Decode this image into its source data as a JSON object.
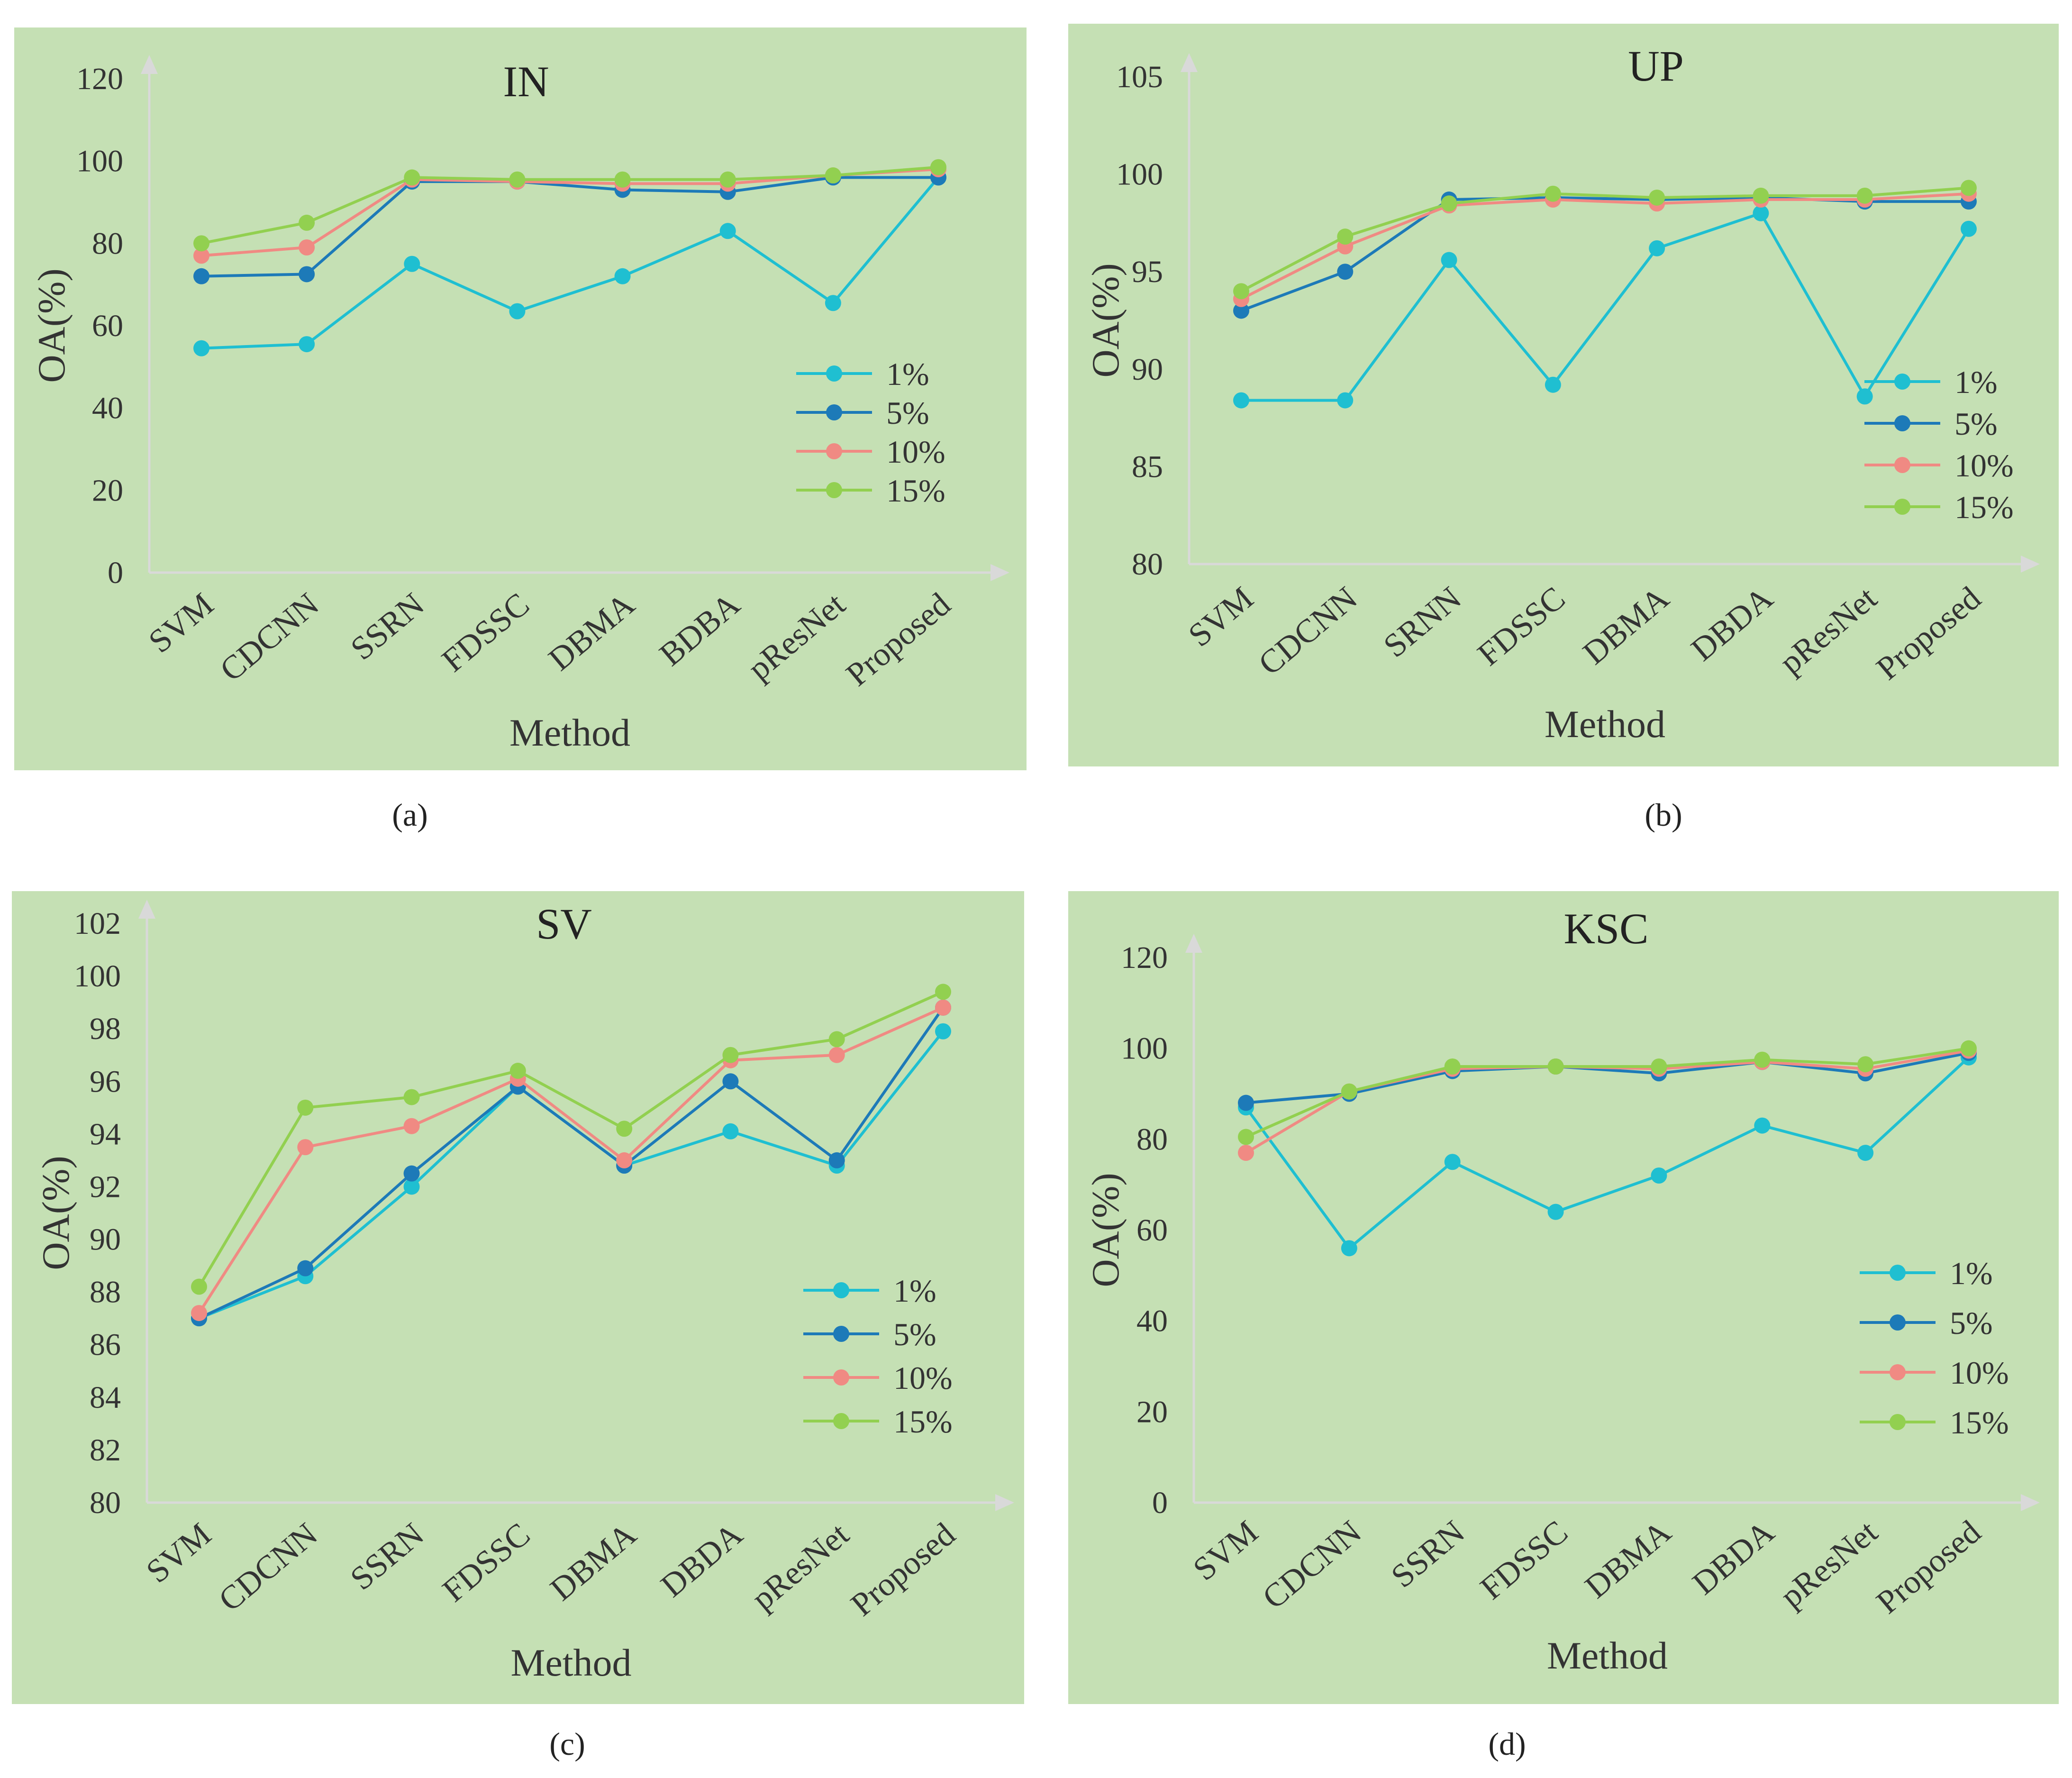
{
  "colors": {
    "panel_bg": "#c5e0b4",
    "axis": "#d9d9d9",
    "series": [
      "#1fbfd1",
      "#1d7ab8",
      "#f08a83",
      "#92d050"
    ]
  },
  "chart_data": [
    {
      "id": "a",
      "type": "line",
      "caption": "(a)",
      "title": "IN",
      "xlabel": "Method",
      "ylabel": "OA(%)",
      "categories": [
        "SVM",
        "CDCNN",
        "SSRN",
        "FDSSC",
        "DBMA",
        "BDBA",
        "pResNet",
        "Proposed"
      ],
      "ylim": [
        0,
        120
      ],
      "yticks": [
        0,
        20,
        40,
        60,
        80,
        100,
        120
      ],
      "legend_position": "right",
      "series": [
        {
          "name": "1%",
          "values": [
            54.5,
            55.5,
            75,
            63.5,
            72,
            83,
            65.5,
            96
          ]
        },
        {
          "name": "5%",
          "values": [
            72,
            72.5,
            95,
            95,
            93,
            92.5,
            96,
            96
          ]
        },
        {
          "name": "10%",
          "values": [
            77,
            79,
            95.5,
            95,
            94.5,
            94.5,
            96.5,
            98
          ]
        },
        {
          "name": "15%",
          "values": [
            80,
            85,
            96,
            95.5,
            95.5,
            95.5,
            96.5,
            98.5
          ]
        }
      ]
    },
    {
      "id": "b",
      "type": "line",
      "caption": "(b)",
      "title": "UP",
      "xlabel": "Method",
      "ylabel": "OA(%)",
      "categories": [
        "SVM",
        "CDCNN",
        "SRNN",
        "FDSSC",
        "DBMA",
        "DBDA",
        "pResNet",
        "Proposed"
      ],
      "ylim": [
        80,
        105
      ],
      "yticks": [
        80,
        85,
        90,
        95,
        100,
        105
      ],
      "legend_position": "right",
      "series": [
        {
          "name": "1%",
          "values": [
            88.4,
            88.4,
            95.6,
            89.2,
            96.2,
            98.0,
            88.6,
            97.2
          ]
        },
        {
          "name": "5%",
          "values": [
            93.0,
            95.0,
            98.7,
            98.8,
            98.7,
            98.8,
            98.6,
            98.6
          ]
        },
        {
          "name": "10%",
          "values": [
            93.6,
            96.3,
            98.4,
            98.7,
            98.5,
            98.7,
            98.7,
            99.0
          ]
        },
        {
          "name": "15%",
          "values": [
            94.0,
            96.8,
            98.5,
            99.0,
            98.8,
            98.9,
            98.9,
            99.3
          ]
        }
      ]
    },
    {
      "id": "c",
      "type": "line",
      "caption": "(c)",
      "title": "SV",
      "xlabel": "Method",
      "ylabel": "OA(%)",
      "categories": [
        "SVM",
        "CDCNN",
        "SSRN",
        "FDSSC",
        "DBMA",
        "DBDA",
        "pResNet",
        "Proposed"
      ],
      "ylim": [
        80,
        102
      ],
      "yticks": [
        80,
        82,
        84,
        86,
        88,
        90,
        92,
        94,
        96,
        98,
        100,
        102
      ],
      "legend_position": "right",
      "series": [
        {
          "name": "1%",
          "values": [
            87.0,
            88.6,
            92.0,
            95.8,
            92.8,
            94.1,
            92.8,
            97.9
          ]
        },
        {
          "name": "5%",
          "values": [
            87.0,
            88.9,
            92.5,
            95.8,
            92.8,
            96.0,
            93.0,
            98.8
          ]
        },
        {
          "name": "10%",
          "values": [
            87.2,
            93.5,
            94.3,
            96.1,
            93.0,
            96.8,
            97.0,
            98.8
          ]
        },
        {
          "name": "15%",
          "values": [
            88.2,
            95.0,
            95.4,
            96.4,
            94.2,
            97.0,
            97.6,
            99.4
          ]
        }
      ]
    },
    {
      "id": "d",
      "type": "line",
      "caption": "(d)",
      "title": "KSC",
      "xlabel": "Method",
      "ylabel": "OA(%)",
      "categories": [
        "SVM",
        "CDCNN",
        "SSRN",
        "FDSSC",
        "DBMA",
        "DBDA",
        "pResNet",
        "Proposed"
      ],
      "ylim": [
        0,
        120
      ],
      "yticks": [
        0,
        20,
        40,
        60,
        80,
        100,
        120
      ],
      "legend_position": "right",
      "series": [
        {
          "name": "1%",
          "values": [
            87,
            56,
            75,
            64,
            72,
            83,
            77,
            98
          ]
        },
        {
          "name": "5%",
          "values": [
            88,
            90,
            95,
            96,
            94.5,
            97,
            94.5,
            99
          ]
        },
        {
          "name": "10%",
          "values": [
            77,
            90.5,
            95.5,
            96,
            95.5,
            97,
            95.5,
            99.5
          ]
        },
        {
          "name": "15%",
          "values": [
            80.5,
            90.5,
            96,
            96,
            96,
            97.5,
            96.5,
            100
          ]
        }
      ]
    }
  ]
}
